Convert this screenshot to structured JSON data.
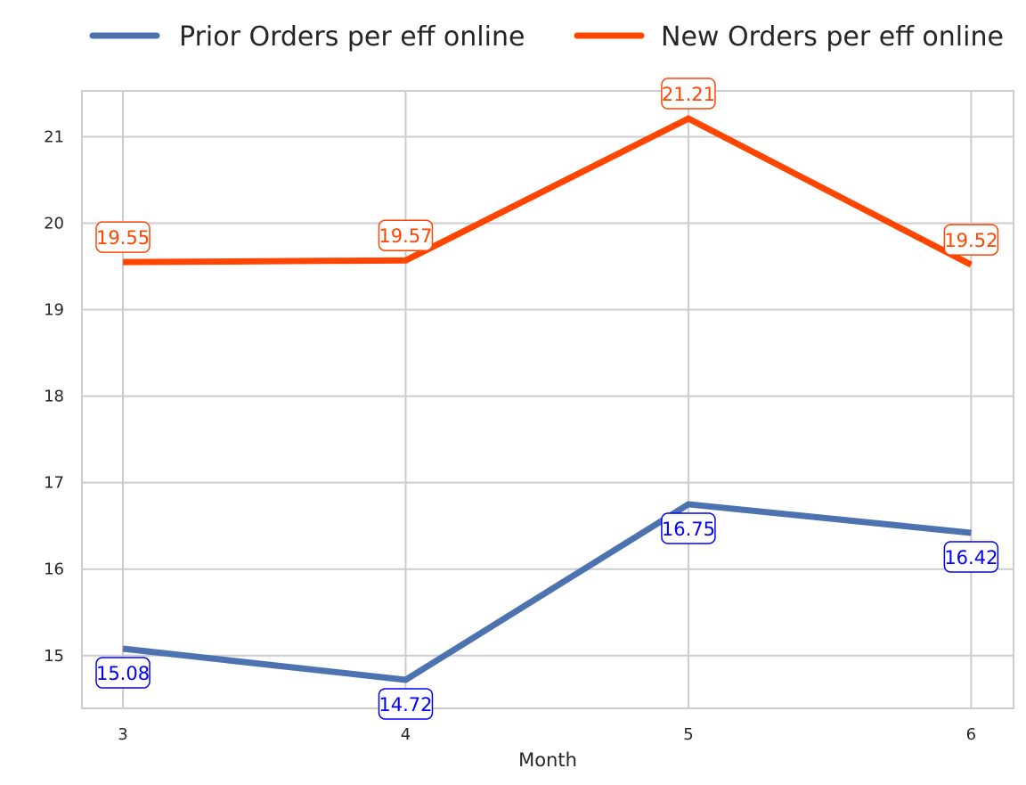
{
  "chart_data": {
    "type": "line",
    "x": [
      3,
      4,
      5,
      6
    ],
    "xlabel": "Month",
    "ylabel": "",
    "xlim": [
      2.855,
      6.15
    ],
    "ylim": [
      14.39,
      21.53
    ],
    "yticks": [
      15,
      16,
      17,
      18,
      19,
      20,
      21
    ],
    "grid": true,
    "legend_position": "top",
    "series": [
      {
        "name": "Prior Orders per eff online",
        "values": [
          15.08,
          14.72,
          16.75,
          16.42
        ],
        "labels": [
          "15.08",
          "14.72",
          "16.75",
          "16.42"
        ],
        "color": "#4c72b0",
        "label_color": "#0000ff",
        "label_position": "below"
      },
      {
        "name": "New Orders per eff online",
        "values": [
          19.55,
          19.57,
          21.21,
          19.52
        ],
        "labels": [
          "19.55",
          "19.57",
          "21.21",
          "19.52"
        ],
        "color": "#ff4500",
        "label_color": "#ff4500",
        "label_position": "above"
      }
    ]
  }
}
